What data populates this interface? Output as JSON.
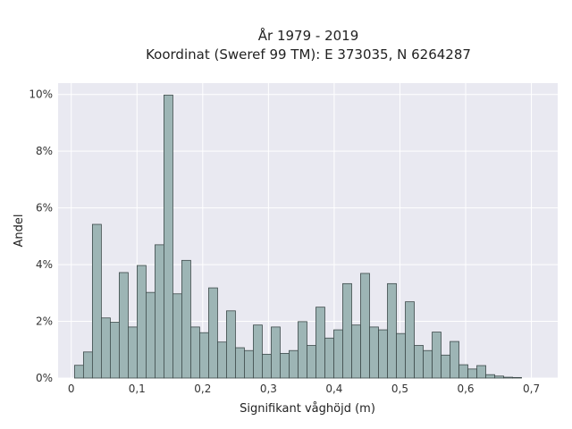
{
  "chart_data": {
    "type": "bar",
    "title_lines": [
      "År 1979 - 2019",
      "Koordinat (Sweref 99 TM): E 373035, N 6264287"
    ],
    "xlabel": "Signifikant våghöjd (m)",
    "ylabel": "Andel",
    "xlim": [
      -0.02,
      0.74
    ],
    "ylim": [
      0,
      10.4
    ],
    "bin_width": 0.0136,
    "bin_start": 0.005,
    "x_ticks": [
      {
        "value": 0,
        "label": "0"
      },
      {
        "value": 0.1,
        "label": "0,1"
      },
      {
        "value": 0.2,
        "label": "0,2"
      },
      {
        "value": 0.3,
        "label": "0,3"
      },
      {
        "value": 0.4,
        "label": "0,4"
      },
      {
        "value": 0.5,
        "label": "0,5"
      },
      {
        "value": 0.6,
        "label": "0,6"
      },
      {
        "value": 0.7,
        "label": "0,7"
      }
    ],
    "y_ticks": [
      {
        "value": 0,
        "label": "0%"
      },
      {
        "value": 2,
        "label": "2%"
      },
      {
        "value": 4,
        "label": "4%"
      },
      {
        "value": 6,
        "label": "6%"
      },
      {
        "value": 8,
        "label": "8%"
      },
      {
        "value": 10,
        "label": "10%"
      }
    ],
    "values": [
      0.45,
      0.92,
      5.42,
      2.12,
      1.97,
      3.72,
      1.8,
      3.97,
      3.02,
      4.7,
      9.98,
      2.97,
      4.15,
      1.8,
      1.6,
      3.18,
      1.27,
      2.37,
      1.07,
      0.97,
      1.87,
      0.84,
      1.8,
      0.87,
      0.97,
      1.99,
      1.15,
      2.5,
      1.41,
      1.7,
      3.33,
      1.87,
      3.69,
      1.8,
      1.7,
      3.33,
      1.57,
      2.69,
      1.15,
      0.97,
      1.62,
      0.81,
      1.29,
      0.47,
      0.32,
      0.44,
      0.12,
      0.07,
      0.03,
      0.02
    ],
    "colors": {
      "bar_fill": "#9db5b5",
      "bar_edge": "#3d4a4a",
      "plot_bg": "#e9e9f1",
      "grid": "#ffffff"
    },
    "grid": true
  }
}
